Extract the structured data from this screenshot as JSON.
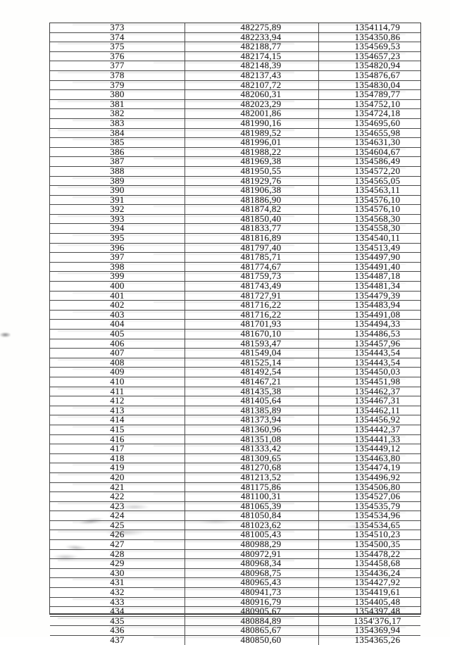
{
  "colors": {
    "ink": "#1e1e1e",
    "table_line": "#4b4b4b",
    "page_background": "#fefefd"
  },
  "table": {
    "row_count": 65,
    "rows": [
      [
        "373",
        "482275,89",
        "1354114,79"
      ],
      [
        "374",
        "482233,94",
        "1354350,86"
      ],
      [
        "375",
        "482188,77",
        "1354569,53"
      ],
      [
        "376",
        "482174,15",
        "1354657,23"
      ],
      [
        "377",
        "482148,39",
        "1354820,94"
      ],
      [
        "378",
        "482137,43",
        "1354876,67"
      ],
      [
        "379",
        "482107,72",
        "1354830,04"
      ],
      [
        "380",
        "482060,31",
        "1354789,77"
      ],
      [
        "381",
        "482023,29",
        "1354752,10"
      ],
      [
        "382",
        "482001,86",
        "1354724,18"
      ],
      [
        "383",
        "481990,16",
        "1354695,60"
      ],
      [
        "384",
        "481989,52",
        "1354655,98"
      ],
      [
        "385",
        "481996,01",
        "1354631,30"
      ],
      [
        "386",
        "481988,22",
        "1354604,67"
      ],
      [
        "387",
        "481969,38",
        "1354586,49"
      ],
      [
        "388",
        "481950,55",
        "1354572,20"
      ],
      [
        "389",
        "481929,76",
        "1354565,05"
      ],
      [
        "390",
        "481906,38",
        "1354563,11"
      ],
      [
        "391",
        "481886,90",
        "1354576,10"
      ],
      [
        "392",
        "481874,82",
        "1354576,10"
      ],
      [
        "393",
        "481850,40",
        "1354568,30"
      ],
      [
        "394",
        "481833,77",
        "1354558,30"
      ],
      [
        "395",
        "481816,89",
        "1354540,11"
      ],
      [
        "396",
        "481797,40",
        "1354513,49"
      ],
      [
        "397",
        "481785,71",
        "1354497,90"
      ],
      [
        "398",
        "481774,67",
        "1354491,40"
      ],
      [
        "399",
        "481759,73",
        "1354487,18"
      ],
      [
        "400",
        "481743,49",
        "1354481,34"
      ],
      [
        "401",
        "481727,91",
        "1354479,39"
      ],
      [
        "402",
        "481716,22",
        "1354483,94"
      ],
      [
        "403",
        "481716,22",
        "1354491,08"
      ],
      [
        "404",
        "481701,93",
        "1354494,33"
      ],
      [
        "405",
        "481670,10",
        "1354486,53"
      ],
      [
        "406",
        "481593,47",
        "1354457,96"
      ],
      [
        "407",
        "481549,04",
        "1354443,54"
      ],
      [
        "408",
        "481525,14",
        "1354443,54"
      ],
      [
        "409",
        "481492,54",
        "1354450,03"
      ],
      [
        "410",
        "481467,21",
        "1354451,98"
      ],
      [
        "411",
        "481435,38",
        "1354462,37"
      ],
      [
        "412",
        "481405,64",
        "1354467,31"
      ],
      [
        "413",
        "481385,89",
        "1354462,11"
      ],
      [
        "414",
        "481373,94",
        "1354456,92"
      ],
      [
        "415",
        "481360,96",
        "1354442,37"
      ],
      [
        "416",
        "481351,08",
        "1354441,33"
      ],
      [
        "417",
        "481333,42",
        "1354449,12"
      ],
      [
        "418",
        "481309,65",
        "1354463,80"
      ],
      [
        "419",
        "481270,68",
        "1354474,19"
      ],
      [
        "420",
        "481213,52",
        "1354496,92"
      ],
      [
        "421",
        "481175,86",
        "1354506,80"
      ],
      [
        "422",
        "481100,31",
        "1354527,06"
      ],
      [
        "423",
        "481065,39",
        "1354535,79"
      ],
      [
        "424",
        "481050,84",
        "1354534,96"
      ],
      [
        "425",
        "481023,62",
        "1354534,65"
      ],
      [
        "426",
        "481005,43",
        "1354510,23"
      ],
      [
        "427",
        "480988,29",
        "1354500,35"
      ],
      [
        "428",
        "480972,91",
        "1354478,22"
      ],
      [
        "429",
        "480968,34",
        "1354458,68"
      ],
      [
        "430",
        "480968,75",
        "1354436,24"
      ],
      [
        "431",
        "480965,43",
        "1354427,92"
      ],
      [
        "432",
        "480941,73",
        "1354419,61"
      ],
      [
        "433",
        "480916,79",
        "1354405,48"
      ],
      [
        "434",
        "480905,67",
        "1354397,48"
      ],
      [
        "435",
        "480884,89",
        "1354'376,17"
      ],
      [
        "436",
        "480865,67",
        "1354369,94"
      ],
      [
        "437",
        "480850,60",
        "1354365,26"
      ]
    ]
  }
}
